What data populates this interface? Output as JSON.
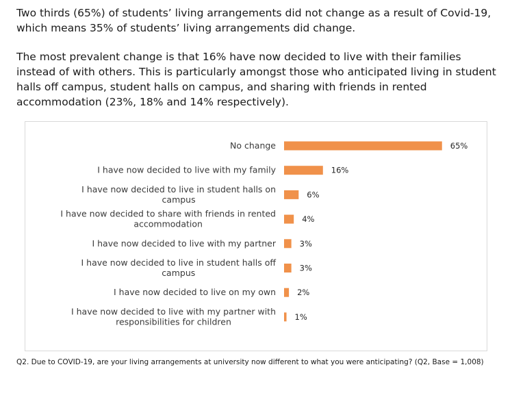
{
  "text": {
    "paragraph1": "Two thirds (65%) of students’ living arrangements did not change as a result of Covid-19, which means 35% of students’ living arrangements did change.",
    "paragraph2": "The most prevalent change is that 16% have now decided to live with their families instead of with others. This is particularly amongst those who anticipated living in student halls off campus, student halls on campus, and sharing with friends in rented accommodation (23%, 18% and 14% respectively).",
    "footnote": "Q2. Due to COVID-19, are your living arrangements at university now different to what you were anticipating? (Q2, Base = 1,008)"
  },
  "colors": {
    "bar": "#f0914a"
  },
  "chart_data": {
    "type": "bar",
    "orientation": "horizontal",
    "title": "",
    "xlabel": "",
    "ylabel": "",
    "xlim": [
      0,
      100
    ],
    "grid": false,
    "legend": "none",
    "categories": [
      [
        "No change"
      ],
      [
        "I have now decided to live with my family"
      ],
      [
        "I have now decided to live in student halls on",
        "campus"
      ],
      [
        "I have now decided to share with friends in rented",
        "accommodation"
      ],
      [
        "I have now decided to live with my partner"
      ],
      [
        "I have now decided to live in student halls off",
        "campus"
      ],
      [
        "I have now decided to live on my own"
      ],
      [
        "I have now decided to live with my partner with",
        "responsibilities for children"
      ]
    ],
    "values": [
      65,
      16,
      6,
      4,
      3,
      3,
      2,
      1
    ],
    "value_labels": [
      "65%",
      "16%",
      "6%",
      "4%",
      "3%",
      "3%",
      "2%",
      "1%"
    ]
  }
}
